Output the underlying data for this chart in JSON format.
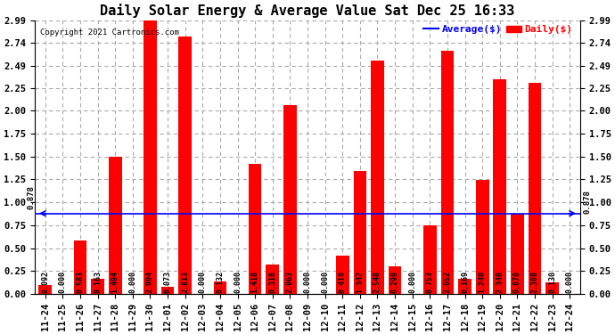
{
  "title": "Daily Solar Energy & Average Value Sat Dec 25 16:33",
  "copyright": "Copyright 2021 Cartronics.com",
  "categories": [
    "11-24",
    "11-25",
    "11-26",
    "11-27",
    "11-28",
    "11-29",
    "11-30",
    "12-01",
    "12-02",
    "12-03",
    "12-04",
    "12-05",
    "12-06",
    "12-07",
    "12-08",
    "12-09",
    "12-10",
    "12-11",
    "12-12",
    "12-13",
    "12-14",
    "12-15",
    "12-16",
    "12-17",
    "12-18",
    "12-19",
    "12-20",
    "12-21",
    "12-22",
    "12-23",
    "12-24"
  ],
  "values": [
    0.092,
    0.0,
    0.583,
    0.163,
    1.494,
    0.0,
    2.994,
    0.073,
    2.813,
    0.0,
    0.132,
    0.0,
    1.418,
    0.316,
    2.063,
    0.0,
    0.0,
    0.419,
    1.342,
    2.548,
    0.299,
    0.0,
    0.753,
    2.652,
    0.169,
    1.24,
    2.34,
    0.878,
    2.308,
    0.13,
    0.0
  ],
  "bar_color": "#ff0000",
  "average_line": 0.878,
  "average_line_color": "#0000ff",
  "ylim": [
    0.0,
    2.99
  ],
  "yticks": [
    0.0,
    0.25,
    0.5,
    0.75,
    1.0,
    1.25,
    1.5,
    1.75,
    2.0,
    2.25,
    2.49,
    2.74,
    2.99
  ],
  "grid_color": "#aaaaaa",
  "grid_style": "--",
  "bg_color": "#ffffff",
  "title_fontsize": 11,
  "tick_fontsize": 7.5,
  "value_fontsize": 6,
  "legend_average_color": "#0000ff",
  "legend_daily_color": "#ff0000",
  "avg_label": "0.878"
}
